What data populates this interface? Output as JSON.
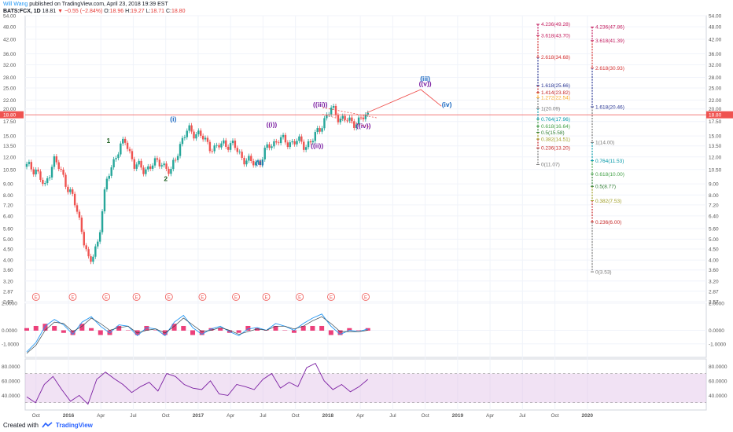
{
  "header": {
    "author": "Will Wang",
    "published": "published on TradingView.com, April 23, 2018 19:39 EST",
    "symbol": "BATS:FCX, 1D",
    "last": "18.81",
    "change": "−0.55 (−2.84%)",
    "ohlc_o_label": "O:",
    "ohlc_o": "18.96",
    "ohlc_h_label": "H:",
    "ohlc_h": "19.27",
    "ohlc_l_label": "L:",
    "ohlc_l": "18.71",
    "ohlc_c_label": "C:",
    "ohlc_c": "18.80"
  },
  "footer": {
    "created_with": "Created with",
    "brand": "TradingView"
  },
  "colors": {
    "up": "#26a69a",
    "down": "#ef5350",
    "price_line": "#ef5350",
    "macd": "#2196f3",
    "signal": "#ef5350",
    "hist": "#e91e63",
    "rsi": "#7b1fa2",
    "rsi_band": "#e1bee7",
    "projection": "#ef5350"
  },
  "chart_data": [
    {
      "type": "candlestick",
      "title": "",
      "y_scale": "log",
      "ylim": [
        2.57,
        54.0
      ],
      "y_ticks": [
        "54.00",
        "48.00",
        "42.00",
        "36.00",
        "32.00",
        "28.00",
        "25.00",
        "22.00",
        "20.00",
        "17.50",
        "15.00",
        "13.50",
        "12.00",
        "10.50",
        "9.00",
        "8.00",
        "7.20",
        "6.40",
        "5.60",
        "5.00",
        "4.50",
        "4.00",
        "3.60",
        "3.20",
        "2.87",
        "2.57"
      ],
      "x_ticks": [
        "Oct",
        "2016",
        "Apr",
        "Jul",
        "Oct",
        "2017",
        "Apr",
        "Jul",
        "Oct",
        "2018",
        "Apr",
        "Jul",
        "Oct",
        "2019",
        "Apr",
        "Jul",
        "Oct",
        "2020"
      ],
      "price_close": [
        10.8,
        10.6,
        8.5,
        11.8,
        9.8,
        8.0,
        5.8,
        3.7,
        5.0,
        9.5,
        12.5,
        14.2,
        11.0,
        10.5,
        11.0,
        11.5,
        9.9,
        13.5,
        16.0,
        15.5,
        14.0,
        13.0,
        14.0,
        13.5,
        12.0,
        11.2,
        11.5,
        13.5,
        14.5,
        14.0,
        14.2,
        13.6,
        14.5,
        17.5,
        20.0,
        18.0,
        17.5,
        17.5,
        18.8
      ],
      "current_price": "18.80",
      "events_label": "E",
      "wave_labels": [
        {
          "text": "1",
          "price": 13.9
        },
        {
          "text": "2",
          "price": 9.3
        },
        {
          "text": "(i)",
          "price": 17.5
        },
        {
          "text": "(ii)",
          "price": 11.0
        },
        {
          "text": "((i))",
          "price": 16.5
        },
        {
          "text": "((ii))",
          "price": 13.2
        },
        {
          "text": "((iii))",
          "price": 20.5
        },
        {
          "text": "((iv))",
          "price": 16.3
        },
        {
          "text": "(iii)",
          "price": 27.0
        },
        {
          "text": "((v))",
          "price": 25.5
        },
        {
          "text": "(iv)",
          "price": 20.5
        }
      ],
      "fib_extension_1": [
        {
          "label": "4.236(49.28)",
          "price": 49.28
        },
        {
          "label": "3.618(43.70)",
          "price": 43.7
        },
        {
          "label": "2.618(34.68)",
          "price": 34.68
        },
        {
          "label": "1.618(25.66)",
          "price": 25.66
        },
        {
          "label": "1.414(23.82)",
          "price": 23.82
        },
        {
          "label": "1.272(22.54)",
          "price": 22.54
        },
        {
          "label": "1(20.09)",
          "price": 20.09
        },
        {
          "label": "0.764(17.96)",
          "price": 17.96
        },
        {
          "label": "0.618(16.64)",
          "price": 16.64
        },
        {
          "label": "0.5(15.58)",
          "price": 15.58
        },
        {
          "label": "0.382(14.51)",
          "price": 14.51
        },
        {
          "label": "0.236(13.20)",
          "price": 13.2
        },
        {
          "label": "0(11.07)",
          "price": 11.07
        }
      ],
      "fib_extension_2": [
        {
          "label": "4.236(47.86)",
          "price": 47.86
        },
        {
          "label": "3.618(41.39)",
          "price": 41.39
        },
        {
          "label": "2.618(30.93)",
          "price": 30.93
        },
        {
          "label": "1.618(20.46)",
          "price": 20.46
        },
        {
          "label": "1(14.00)",
          "price": 14.0
        },
        {
          "label": "0.764(11.53)",
          "price": 11.53
        },
        {
          "label": "0.618(10.00)",
          "price": 10.0
        },
        {
          "label": "0.5(8.77)",
          "price": 8.77
        },
        {
          "label": "0.382(7.53)",
          "price": 7.53
        },
        {
          "label": "0.236(6.00)",
          "price": 6.0
        },
        {
          "label": "0(3.53)",
          "price": 3.53
        }
      ]
    },
    {
      "type": "line",
      "title": "MACD",
      "ylim": [
        -2.0,
        2.0
      ],
      "y_ticks": [
        "2.0000",
        "0.0000",
        "-1.0000"
      ],
      "series": [
        {
          "values": [
            -1.6,
            -0.9,
            0.3,
            0.8,
            0.4,
            -0.3,
            0.6,
            1.0,
            0.3,
            -0.2,
            0.4,
            0.3,
            -0.4,
            0.2,
            0.1,
            -0.4,
            0.6,
            1.1,
            0.2,
            -0.3,
            0.1,
            0.3,
            -0.1,
            -0.4,
            0.1,
            0.2,
            0.0,
            0.5,
            0.3,
            0.0,
            0.5,
            0.9,
            1.2,
            0.3,
            -0.3,
            0.0,
            -0.1,
            0.1
          ]
        },
        {
          "values": [
            -1.7,
            -1.1,
            0.0,
            0.6,
            0.5,
            -0.1,
            0.3,
            0.9,
            0.5,
            0.0,
            0.2,
            0.3,
            -0.2,
            0.0,
            0.1,
            -0.2,
            0.3,
            0.9,
            0.4,
            -0.1,
            0.0,
            0.2,
            0.0,
            -0.3,
            -0.1,
            0.1,
            0.0,
            0.3,
            0.3,
            0.1,
            0.3,
            0.7,
            1.0,
            0.5,
            -0.1,
            -0.1,
            -0.1,
            0.0
          ]
        }
      ]
    },
    {
      "type": "line",
      "title": "RSI",
      "ylim": [
        20,
        90
      ],
      "band": [
        30,
        70
      ],
      "y_ticks": [
        "80.0000",
        "60.0000",
        "40.0000"
      ],
      "series": [
        {
          "values": [
            38,
            30,
            55,
            66,
            48,
            32,
            40,
            28,
            62,
            72,
            63,
            55,
            44,
            52,
            58,
            46,
            70,
            66,
            55,
            50,
            48,
            60,
            42,
            40,
            55,
            52,
            48,
            62,
            70,
            50,
            58,
            52,
            78,
            84,
            60,
            48,
            55,
            45,
            52,
            62
          ]
        }
      ]
    }
  ]
}
